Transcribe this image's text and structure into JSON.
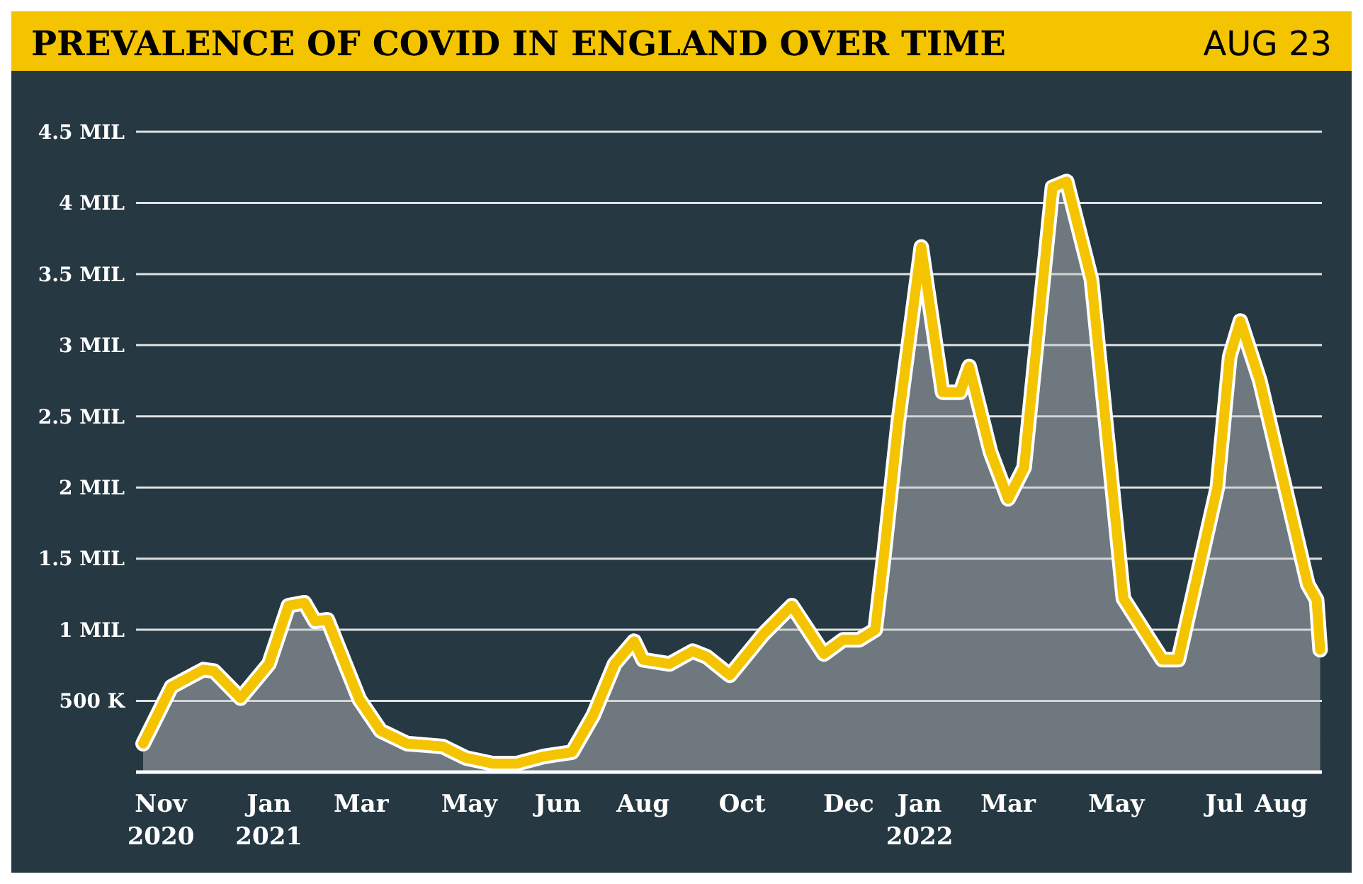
{
  "chart_data": {
    "type": "area",
    "title": "PREVALENCE OF COVID IN ENGLAND OVER TIME",
    "subtitle": "AUG 23",
    "xlim": [
      "2020-10-25",
      "2022-08-25"
    ],
    "xticks": [
      {
        "value": "2020-11-08",
        "label": "Nov\n2020"
      },
      {
        "value": "2021-01-08",
        "label": "Jan\n2021"
      },
      {
        "value": "2021-03-01",
        "label": "Mar"
      },
      {
        "value": "2021-05-01",
        "label": "May"
      },
      {
        "value": "2021-06-20",
        "label": "Jun"
      },
      {
        "value": "2021-08-07",
        "label": "Aug"
      },
      {
        "value": "2021-10-02",
        "label": "Oct"
      },
      {
        "value": "2021-12-01",
        "label": "Dec"
      },
      {
        "value": "2022-01-10",
        "label": "Jan\n2022"
      },
      {
        "value": "2022-03-01",
        "label": "Mar"
      },
      {
        "value": "2022-05-01",
        "label": "May"
      },
      {
        "value": "2022-07-01",
        "label": "Jul"
      },
      {
        "value": "2022-08-02",
        "label": "Aug"
      }
    ],
    "ylim": [
      0,
      4.5
    ],
    "yticks": [
      {
        "value": 0.5,
        "label": "500 K"
      },
      {
        "value": 1,
        "label": "1 MIL"
      },
      {
        "value": 1.5,
        "label": "1.5 MIL"
      },
      {
        "value": 2,
        "label": "2 MIL"
      },
      {
        "value": 2.5,
        "label": "2.5 MIL"
      },
      {
        "value": 3,
        "label": "3 MIL"
      },
      {
        "value": 3.5,
        "label": "3.5 MIL"
      },
      {
        "value": 4,
        "label": "4 MIL"
      },
      {
        "value": 4.5,
        "label": "4.5 MIL"
      }
    ],
    "grid": "y",
    "series": [
      {
        "color": "#f5c400",
        "x": [
          "2020-10-29",
          "2020-11-14",
          "2020-12-02",
          "2020-12-08",
          "2020-12-23",
          "2021-01-08",
          "2021-01-19",
          "2021-01-28",
          "2021-02-03",
          "2021-02-10",
          "2021-02-28",
          "2021-03-12",
          "2021-03-27",
          "2021-04-16",
          "2021-04-29",
          "2021-05-14",
          "2021-05-28",
          "2021-06-12",
          "2021-06-28",
          "2021-07-10",
          "2021-07-22",
          "2021-08-02",
          "2021-08-07",
          "2021-08-22",
          "2021-09-04",
          "2021-09-12",
          "2021-09-25",
          "2021-10-14",
          "2021-10-30",
          "2021-11-17",
          "2021-11-28",
          "2021-12-07",
          "2021-12-16",
          "2021-12-21",
          "2021-12-29",
          "2022-01-11",
          "2022-01-23",
          "2022-02-02",
          "2022-02-07",
          "2022-02-19",
          "2022-03-01",
          "2022-03-10",
          "2022-03-26",
          "2022-04-03",
          "2022-04-17",
          "2022-05-05",
          "2022-05-27",
          "2022-06-05",
          "2022-06-27",
          "2022-07-04",
          "2022-07-10",
          "2022-07-21",
          "2022-08-17",
          "2022-08-22",
          "2022-08-24"
        ],
        "values": [
          0.2,
          0.6,
          0.72,
          0.71,
          0.52,
          0.76,
          1.17,
          1.19,
          1.06,
          1.07,
          0.51,
          0.29,
          0.2,
          0.18,
          0.1,
          0.06,
          0.06,
          0.11,
          0.14,
          0.4,
          0.76,
          0.92,
          0.79,
          0.76,
          0.85,
          0.81,
          0.68,
          0.97,
          1.17,
          0.83,
          0.93,
          0.93,
          1.0,
          1.53,
          2.46,
          3.69,
          2.67,
          2.67,
          2.85,
          2.25,
          1.92,
          2.14,
          4.11,
          4.15,
          3.46,
          1.22,
          0.79,
          0.79,
          2.0,
          2.92,
          3.17,
          2.75,
          1.32,
          1.21,
          0.86
        ]
      }
    ]
  }
}
